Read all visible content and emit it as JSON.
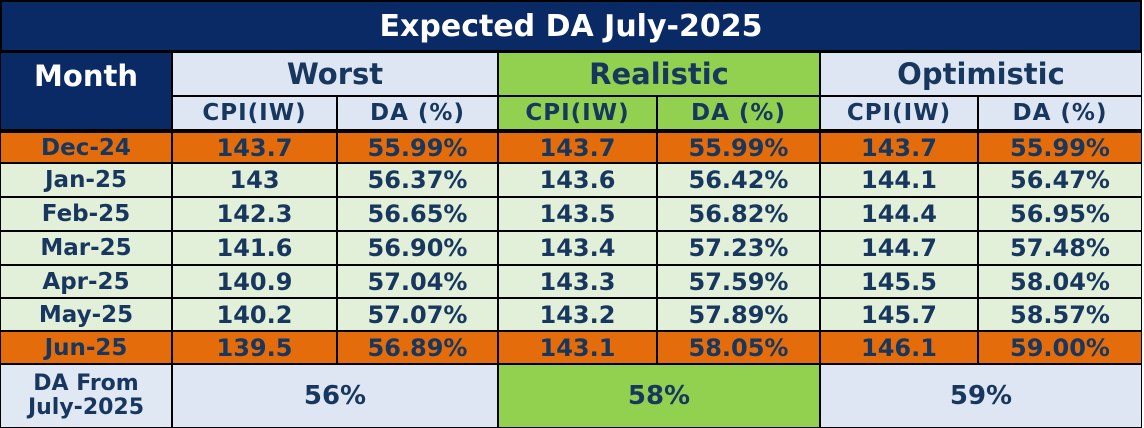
{
  "title": "Expected DA July-2025",
  "month_header": "Month",
  "scenarios": [
    {
      "name": "Worst",
      "color": "#dde6f2"
    },
    {
      "name": "Realistic",
      "color": "#92d050"
    },
    {
      "name": "Optimistic",
      "color": "#dde6f2"
    }
  ],
  "sub_headers": [
    "CPI(IW)",
    "DA (%)"
  ],
  "rows": [
    {
      "month": "Dec-24",
      "values": [
        "143.7",
        "55.99%",
        "143.7",
        "55.99%",
        "143.7",
        "55.99%"
      ],
      "highlight": true
    },
    {
      "month": "Jan-25",
      "values": [
        "143",
        "56.37%",
        "143.6",
        "56.42%",
        "144.1",
        "56.47%"
      ],
      "highlight": false
    },
    {
      "month": "Feb-25",
      "values": [
        "142.3",
        "56.65%",
        "143.5",
        "56.82%",
        "144.4",
        "56.95%"
      ],
      "highlight": false
    },
    {
      "month": "Mar-25",
      "values": [
        "141.6",
        "56.90%",
        "143.4",
        "57.23%",
        "144.7",
        "57.48%"
      ],
      "highlight": false
    },
    {
      "month": "Apr-25",
      "values": [
        "140.9",
        "57.04%",
        "143.3",
        "57.59%",
        "145.5",
        "58.04%"
      ],
      "highlight": false
    },
    {
      "month": "May-25",
      "values": [
        "140.2",
        "57.07%",
        "143.2",
        "57.89%",
        "145.7",
        "58.57%"
      ],
      "highlight": false
    },
    {
      "month": "Jun-25",
      "values": [
        "139.5",
        "56.89%",
        "143.1",
        "58.05%",
        "146.1",
        "59.00%"
      ],
      "highlight": true
    }
  ],
  "footer": {
    "label_line1": "DA From",
    "label_line2": "July-2025",
    "values": [
      "56%",
      "58%",
      "59%"
    ]
  },
  "colors": {
    "header_navy": "#0a2a66",
    "text_navy": "#17375e",
    "row_light_green": "#e2efd9",
    "row_orange": "#e46c0a",
    "header_light_blue": "#dde6f2",
    "realistic_green": "#92d050"
  }
}
